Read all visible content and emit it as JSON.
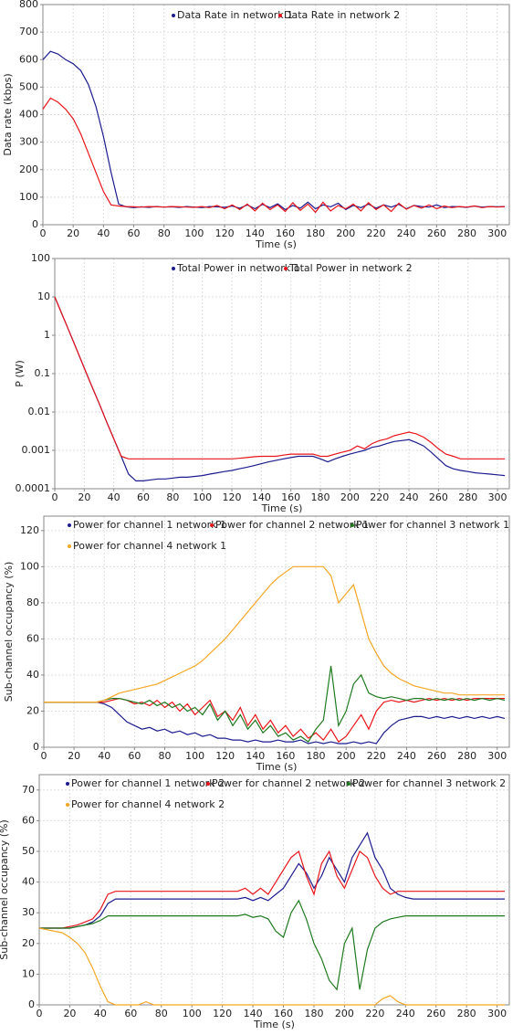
{
  "chart_data": [
    {
      "type": "line",
      "x_label": "Time (s)",
      "y_label": "Data rate (kbps)",
      "grid": true,
      "x": [
        0,
        5,
        10,
        15,
        20,
        25,
        30,
        35,
        40,
        45,
        50,
        55,
        60,
        65,
        70,
        75,
        80,
        85,
        90,
        95,
        100,
        105,
        110,
        115,
        120,
        125,
        130,
        135,
        140,
        145,
        150,
        155,
        160,
        165,
        170,
        175,
        180,
        185,
        190,
        195,
        200,
        205,
        210,
        215,
        220,
        225,
        230,
        235,
        240,
        245,
        250,
        255,
        260,
        265,
        270,
        275,
        280,
        285,
        290,
        295,
        300,
        305
      ],
      "xlim": [
        0,
        308
      ],
      "xticks": [
        0,
        20,
        40,
        60,
        80,
        100,
        120,
        140,
        160,
        180,
        200,
        220,
        240,
        260,
        280,
        300
      ],
      "ylim": [
        0,
        800
      ],
      "yticks": [
        0,
        100,
        200,
        300,
        400,
        500,
        600,
        700,
        800
      ],
      "series": [
        {
          "name": "Data Rate in network  1",
          "color": "#1c1c8f",
          "values": [
            600,
            630,
            620,
            600,
            585,
            560,
            510,
            430,
            320,
            190,
            75,
            65,
            62,
            65,
            63,
            66,
            64,
            65,
            63,
            66,
            64,
            62,
            66,
            65,
            63,
            68,
            60,
            72,
            58,
            74,
            62,
            76,
            55,
            70,
            60,
            82,
            58,
            72,
            65,
            78,
            55,
            70,
            62,
            75,
            60,
            72,
            64,
            74,
            58,
            70,
            66,
            64,
            72,
            62,
            66,
            65,
            63,
            68,
            64,
            66,
            65,
            66
          ]
        },
        {
          "name": "Data Rate in network  2",
          "color": "#e8141a",
          "values": [
            420,
            460,
            445,
            420,
            385,
            330,
            260,
            190,
            120,
            72,
            68,
            66,
            65,
            64,
            66,
            65,
            64,
            66,
            65,
            64,
            63,
            66,
            62,
            70,
            58,
            72,
            55,
            75,
            50,
            78,
            55,
            72,
            48,
            80,
            52,
            75,
            45,
            82,
            50,
            70,
            58,
            75,
            50,
            80,
            55,
            72,
            48,
            78,
            56,
            70,
            60,
            72,
            58,
            68,
            62,
            66,
            64,
            68,
            62,
            66,
            64,
            66
          ]
        }
      ]
    },
    {
      "type": "line",
      "x_label": "Time (s)",
      "y_label": "P (W)",
      "grid": true,
      "log_scale": true,
      "x": [
        0,
        5,
        10,
        15,
        20,
        25,
        30,
        35,
        40,
        45,
        50,
        55,
        60,
        65,
        70,
        75,
        80,
        85,
        90,
        95,
        100,
        105,
        110,
        115,
        120,
        125,
        130,
        135,
        140,
        145,
        150,
        155,
        160,
        165,
        170,
        175,
        180,
        185,
        190,
        195,
        200,
        205,
        210,
        215,
        220,
        225,
        230,
        235,
        240,
        245,
        250,
        255,
        260,
        265,
        270,
        275,
        280,
        285,
        290,
        295,
        300,
        305
      ],
      "xlim": [
        0,
        308
      ],
      "xticks": [
        0,
        20,
        40,
        60,
        80,
        100,
        120,
        140,
        160,
        180,
        200,
        220,
        240,
        260,
        280,
        300
      ],
      "ylim": [
        0.0001,
        100
      ],
      "yticks": [
        0.0001,
        0.001,
        0.01,
        0.1,
        1,
        10,
        100
      ],
      "series": [
        {
          "name": "Total Power in network 1",
          "color": "#1c1c8f",
          "values": [
            10,
            3.45,
            1.2,
            0.41,
            0.14,
            0.048,
            0.017,
            0.0057,
            0.002,
            0.0007,
            0.00024,
            0.00016,
            0.00016,
            0.00017,
            0.00018,
            0.00018,
            0.00019,
            0.0002,
            0.0002,
            0.00021,
            0.00022,
            0.00024,
            0.00026,
            0.00028,
            0.0003,
            0.00033,
            0.00036,
            0.0004,
            0.00045,
            0.0005,
            0.00055,
            0.0006,
            0.00065,
            0.0007,
            0.0007,
            0.0007,
            0.0006,
            0.0005,
            0.0006,
            0.0007,
            0.0008,
            0.0009,
            0.001,
            0.0012,
            0.0013,
            0.0015,
            0.0017,
            0.0018,
            0.0019,
            0.0016,
            0.0013,
            0.0009,
            0.0006,
            0.0004,
            0.00033,
            0.0003,
            0.00028,
            0.00026,
            0.00025,
            0.00024,
            0.00023,
            0.00022
          ]
        },
        {
          "name": "Total Power in network 2",
          "color": "#e8141a",
          "values": [
            10,
            3.45,
            1.2,
            0.41,
            0.14,
            0.048,
            0.017,
            0.0057,
            0.002,
            0.0007,
            0.0006,
            0.0006,
            0.0006,
            0.0006,
            0.0006,
            0.0006,
            0.0006,
            0.0006,
            0.0006,
            0.0006,
            0.0006,
            0.0006,
            0.0006,
            0.0006,
            0.0006,
            0.00062,
            0.00065,
            0.00068,
            0.0007,
            0.0007,
            0.0007,
            0.00075,
            0.0008,
            0.0008,
            0.0008,
            0.0008,
            0.0007,
            0.0007,
            0.0008,
            0.0009,
            0.001,
            0.0013,
            0.0011,
            0.0015,
            0.0018,
            0.002,
            0.0024,
            0.0027,
            0.003,
            0.0027,
            0.0022,
            0.0016,
            0.0011,
            0.0008,
            0.0007,
            0.0006,
            0.0006,
            0.0006,
            0.0006,
            0.0006,
            0.0006,
            0.0006
          ]
        }
      ]
    },
    {
      "type": "line",
      "x_label": "Time (s)",
      "y_label": "Sub-channel occupancy (%)",
      "grid": true,
      "x": [
        0,
        5,
        10,
        15,
        20,
        25,
        30,
        35,
        40,
        45,
        50,
        55,
        60,
        65,
        70,
        75,
        80,
        85,
        90,
        95,
        100,
        105,
        110,
        115,
        120,
        125,
        130,
        135,
        140,
        145,
        150,
        155,
        160,
        165,
        170,
        175,
        180,
        185,
        190,
        195,
        200,
        205,
        210,
        215,
        220,
        225,
        230,
        235,
        240,
        245,
        250,
        255,
        260,
        265,
        270,
        275,
        280,
        285,
        290,
        295,
        300,
        305
      ],
      "xlim": [
        0,
        308
      ],
      "xticks": [
        0,
        20,
        40,
        60,
        80,
        100,
        120,
        140,
        160,
        180,
        200,
        220,
        240,
        260,
        280,
        300
      ],
      "ylim": [
        0,
        128
      ],
      "yticks": [
        0,
        20,
        40,
        60,
        80,
        100,
        120
      ],
      "series": [
        {
          "name": "Power for channel 1 network  1",
          "color": "#1c1c8f",
          "values": [
            25,
            25,
            25,
            25,
            25,
            25,
            25,
            25,
            24,
            22,
            18,
            14,
            12,
            10,
            11,
            9,
            10,
            8,
            9,
            7,
            8,
            6,
            7,
            5,
            5,
            4,
            4,
            3,
            4,
            3,
            3,
            4,
            3,
            3,
            4,
            2,
            3,
            2,
            3,
            2,
            2,
            3,
            2,
            3,
            2,
            8,
            12,
            15,
            16,
            17,
            17,
            16,
            17,
            16,
            17,
            16,
            17,
            16,
            17,
            16,
            17,
            16
          ]
        },
        {
          "name": "Power for channel 2 network  1",
          "color": "#e8141a",
          "values": [
            25,
            25,
            25,
            25,
            25,
            25,
            25,
            25,
            25,
            26,
            27,
            26,
            24,
            25,
            23,
            26,
            22,
            25,
            20,
            24,
            18,
            22,
            26,
            17,
            20,
            15,
            22,
            12,
            18,
            10,
            15,
            8,
            12,
            6,
            10,
            5,
            8,
            4,
            10,
            3,
            6,
            12,
            18,
            10,
            20,
            25,
            26,
            25,
            26,
            25,
            26,
            27,
            26,
            27,
            26,
            27,
            26,
            27,
            27,
            27,
            27,
            27
          ]
        },
        {
          "name": "Power for channel 3 network  1",
          "color": "#1f7a1f",
          "values": [
            25,
            25,
            25,
            25,
            25,
            25,
            25,
            25,
            26,
            27,
            27,
            26,
            25,
            24,
            26,
            23,
            25,
            22,
            24,
            20,
            22,
            18,
            24,
            15,
            20,
            12,
            18,
            10,
            15,
            8,
            12,
            6,
            8,
            4,
            6,
            3,
            10,
            15,
            45,
            12,
            20,
            35,
            40,
            30,
            28,
            27,
            28,
            27,
            26,
            27,
            27,
            26,
            27,
            26,
            27,
            26,
            27,
            26,
            27,
            26,
            27,
            26
          ]
        },
        {
          "name": "Power for channel 4 network  1",
          "color": "#f5a623",
          "values": [
            25,
            25,
            25,
            25,
            25,
            25,
            25,
            25,
            26,
            28,
            30,
            31,
            32,
            33,
            34,
            35,
            37,
            39,
            41,
            43,
            45,
            48,
            52,
            56,
            60,
            65,
            70,
            75,
            80,
            85,
            90,
            94,
            97,
            100,
            100,
            100,
            100,
            100,
            95,
            80,
            85,
            90,
            75,
            60,
            52,
            45,
            41,
            38,
            36,
            34,
            33,
            32,
            31,
            30,
            30,
            29,
            29,
            29,
            29,
            29,
            29,
            29
          ]
        }
      ]
    },
    {
      "type": "line",
      "x_label": "Time (s)",
      "y_label": "Sub-channel occupancy (%)",
      "grid": true,
      "x": [
        0,
        5,
        10,
        15,
        20,
        25,
        30,
        35,
        40,
        45,
        50,
        55,
        60,
        65,
        70,
        75,
        80,
        85,
        90,
        95,
        100,
        105,
        110,
        115,
        120,
        125,
        130,
        135,
        140,
        145,
        150,
        155,
        160,
        165,
        170,
        175,
        180,
        185,
        190,
        195,
        200,
        205,
        210,
        215,
        220,
        225,
        230,
        235,
        240,
        245,
        250,
        255,
        260,
        265,
        270,
        275,
        280,
        285,
        290,
        295,
        300,
        305
      ],
      "xlim": [
        0,
        308
      ],
      "xticks": [
        0,
        20,
        40,
        60,
        80,
        100,
        120,
        140,
        160,
        180,
        200,
        220,
        240,
        260,
        280,
        300
      ],
      "ylim": [
        0,
        75
      ],
      "yticks": [
        0,
        10,
        20,
        30,
        40,
        50,
        60,
        70
      ],
      "series": [
        {
          "name": "Power for channel 1 network  2",
          "color": "#1c1c8f",
          "values": [
            25,
            25,
            25,
            25,
            25,
            25.5,
            26,
            27,
            29,
            33,
            34.5,
            34.5,
            34.5,
            34.5,
            34.5,
            34.5,
            34.5,
            34.5,
            34.5,
            34.5,
            34.5,
            34.5,
            34.5,
            34.5,
            34.5,
            34.5,
            34.5,
            35,
            34,
            35,
            34,
            36,
            38,
            42,
            46,
            43,
            38,
            42,
            48,
            44,
            40,
            48,
            52,
            56,
            48,
            44,
            38,
            36,
            35,
            34.5,
            34.5,
            34.5,
            34.5,
            34.5,
            34.5,
            34.5,
            34.5,
            34.5,
            34.5,
            34.5,
            34.5,
            34.5
          ]
        },
        {
          "name": "Power for channel 2 network  2",
          "color": "#e8141a",
          "values": [
            25,
            25,
            25,
            25,
            25.5,
            26,
            27,
            28,
            31,
            36,
            37,
            37,
            37,
            37,
            37,
            37,
            37,
            37,
            37,
            37,
            37,
            37,
            37,
            37,
            37,
            37,
            37,
            38,
            36,
            38,
            36,
            40,
            44,
            48,
            50,
            42,
            36,
            46,
            50,
            42,
            38,
            44,
            50,
            48,
            42,
            38,
            36,
            37,
            37,
            37,
            37,
            37,
            37,
            37,
            37,
            37,
            37,
            37,
            37,
            37,
            37,
            37
          ]
        },
        {
          "name": "Power for channel 3 network  2",
          "color": "#1f7a1f",
          "values": [
            25,
            25,
            25,
            25,
            25,
            25.5,
            26,
            26.5,
            27.5,
            29,
            29,
            29,
            29,
            29,
            29,
            29,
            29,
            29,
            29,
            29,
            29,
            29,
            29,
            29,
            29,
            29,
            29,
            29.5,
            28.5,
            29,
            28,
            24,
            22,
            30,
            34,
            28,
            20,
            15,
            8,
            5,
            20,
            25,
            5,
            18,
            25,
            27,
            28,
            28.5,
            29,
            29,
            29,
            29,
            29,
            29,
            29,
            29,
            29,
            29,
            29,
            29,
            29,
            29
          ]
        },
        {
          "name": "Power for channel 4 network  2",
          "color": "#f5a623",
          "values": [
            25,
            24.5,
            24,
            23.5,
            22,
            20,
            17,
            12,
            6,
            1,
            0,
            0,
            0,
            0,
            1,
            0,
            0,
            0,
            0,
            0,
            0,
            0,
            0,
            0,
            0,
            0,
            0,
            0,
            0,
            0,
            0,
            0,
            0,
            0,
            0,
            0,
            0,
            0,
            0,
            0,
            0,
            0,
            0,
            0,
            0,
            2,
            3,
            1,
            0,
            0,
            0,
            0,
            0,
            0,
            0,
            0,
            0,
            0,
            0,
            0,
            0,
            0
          ]
        }
      ]
    }
  ]
}
